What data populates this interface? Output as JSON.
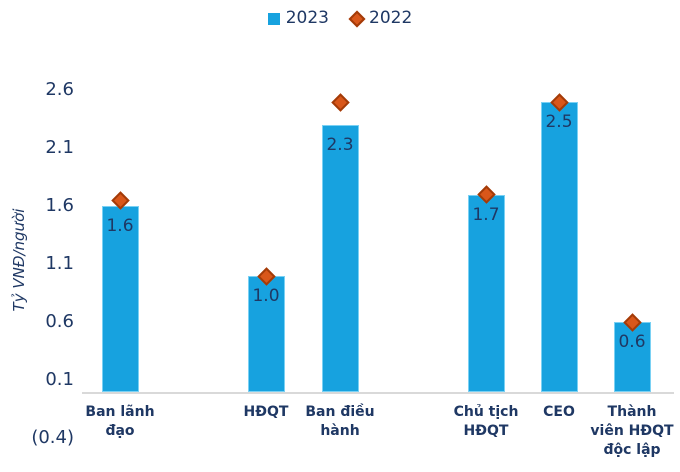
{
  "chart_data": {
    "type": "bar",
    "title": "",
    "xlabel": "",
    "ylabel": "Tỷ VNĐ/người",
    "ylim": [
      -0.4,
      2.6
    ],
    "y_tick_step": 0.5,
    "grid": false,
    "legend_position": "top-center",
    "categories": [
      "Ban lãnh đạo",
      "HĐQT",
      "Ban điều hành",
      "Chủ tịch HĐQT",
      "CEO",
      "Thành viên HĐQT độc lập"
    ],
    "category_display_lines": [
      "Ban lãnh\nđạo",
      "HĐQT",
      "Ban điều\nhành",
      "Chủ tịch\nHĐQT",
      "CEO",
      "Thành\nviên HĐQT\nđộc lập"
    ],
    "series": [
      {
        "name": "2023",
        "type": "bar",
        "marker": "square",
        "color": "#17A2DF",
        "values": [
          1.6,
          1.0,
          2.3,
          1.7,
          2.5,
          0.6
        ],
        "labels": [
          "1.6",
          "1.0",
          "2.3",
          "1.7",
          "2.5",
          "0.6"
        ]
      },
      {
        "name": "2022",
        "type": "scatter",
        "marker": "diamond",
        "color": "#D9571A",
        "values_estimated_from_markers": true,
        "values": [
          1.65,
          1.0,
          2.5,
          1.7,
          2.5,
          0.6
        ]
      }
    ],
    "y_ticks": [
      {
        "value": 2.6,
        "label": "2.6"
      },
      {
        "value": 2.1,
        "label": "2.1"
      },
      {
        "value": 1.6,
        "label": "1.6"
      },
      {
        "value": 1.1,
        "label": "1.1"
      },
      {
        "value": 0.6,
        "label": "0.6"
      },
      {
        "value": 0.1,
        "label": "0.1"
      },
      {
        "value": -0.4,
        "label": "(0.4)"
      }
    ],
    "colors": {
      "bar_fill": "#17A2DF",
      "bar_border": "#7AD1F4",
      "diamond_fill": "#D9571A",
      "diamond_border": "#A33B08",
      "text": "#1F3864",
      "axis_line": "#D9D9D9",
      "background": "#FFFFFF"
    }
  }
}
